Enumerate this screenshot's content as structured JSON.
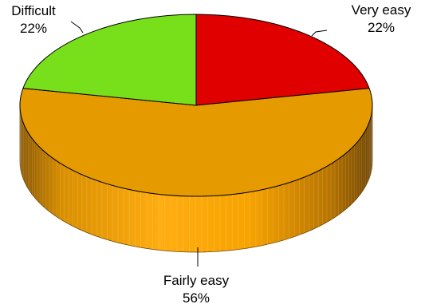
{
  "chart_data": {
    "type": "pie",
    "style": "3d",
    "slices": [
      {
        "label": "Very easy",
        "value": 22,
        "value_label": "22%",
        "color": "#e00000"
      },
      {
        "label": "Fairly easy",
        "value": 56,
        "value_label": "56%",
        "color": "#e59a00"
      },
      {
        "label": "Difficult",
        "value": 22,
        "value_label": "22%",
        "color": "#77e01a"
      }
    ]
  }
}
